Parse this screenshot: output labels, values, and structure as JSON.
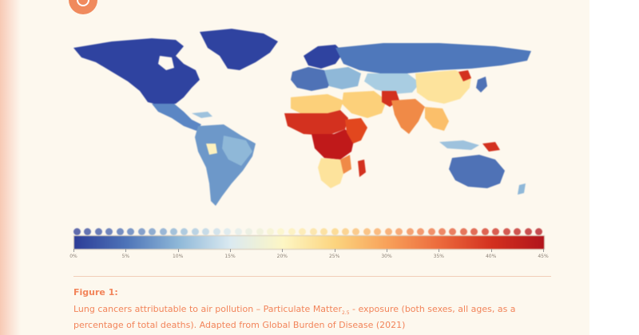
{
  "figure": {
    "label": "Figure 1:",
    "caption_before_sub": "Lung cancers attributable to air pollution – Particulate Matter",
    "caption_sub": "2.5",
    "caption_after_sub": " - exposure (both sexes, all ages, as a percentage of total deaths). Adapted from Global Burden of Disease (2021)"
  },
  "legend": {
    "ticks": [
      "0%",
      "5%",
      "10%",
      "15%",
      "20%",
      "25%",
      "30%",
      "35%",
      "40%",
      "45%"
    ],
    "min": 0,
    "max": 45,
    "unit": "%"
  },
  "colors": {
    "scale": [
      "#2c3c97",
      "#4e74b8",
      "#8fb8d8",
      "#dbeaf1",
      "#fdf6c4",
      "#fcd47e",
      "#f8a15a",
      "#ec6a3c",
      "#d3311f",
      "#b1141c"
    ],
    "accent": "#f2845a",
    "panel": "#fdf8ee"
  },
  "chart_data": {
    "type": "heatmap",
    "title": "",
    "value_unit": "% of total deaths",
    "regions": [
      {
        "name": "North America",
        "value_range": "0-5%"
      },
      {
        "name": "Greenland",
        "value_range": "0-5%"
      },
      {
        "name": "Central America",
        "value_range": "5-10%"
      },
      {
        "name": "South America",
        "value_range": "5-15%"
      },
      {
        "name": "Northern Europe",
        "value_range": "0-5%"
      },
      {
        "name": "Western Europe",
        "value_range": "5-10%"
      },
      {
        "name": "Eastern Europe",
        "value_range": "10-15%"
      },
      {
        "name": "Russia",
        "value_range": "5-10%"
      },
      {
        "name": "North Africa",
        "value_range": "20-30%"
      },
      {
        "name": "Sahel / West Africa",
        "value_range": "35-45%"
      },
      {
        "name": "Central Africa",
        "value_range": "35-45%"
      },
      {
        "name": "East Africa",
        "value_range": "35-45%"
      },
      {
        "name": "Southern Africa",
        "value_range": "15-25%"
      },
      {
        "name": "Madagascar",
        "value_range": "40-45%"
      },
      {
        "name": "Middle East",
        "value_range": "25-35%"
      },
      {
        "name": "South Asia",
        "value_range": "30-40%"
      },
      {
        "name": "China",
        "value_range": "20-25%"
      },
      {
        "name": "Southeast Asia",
        "value_range": "15-25%"
      },
      {
        "name": "Japan / Korea",
        "value_range": "10-15%"
      },
      {
        "name": "Australia",
        "value_range": "0-5%"
      },
      {
        "name": "Papua New Guinea",
        "value_range": "35-45%"
      }
    ]
  }
}
